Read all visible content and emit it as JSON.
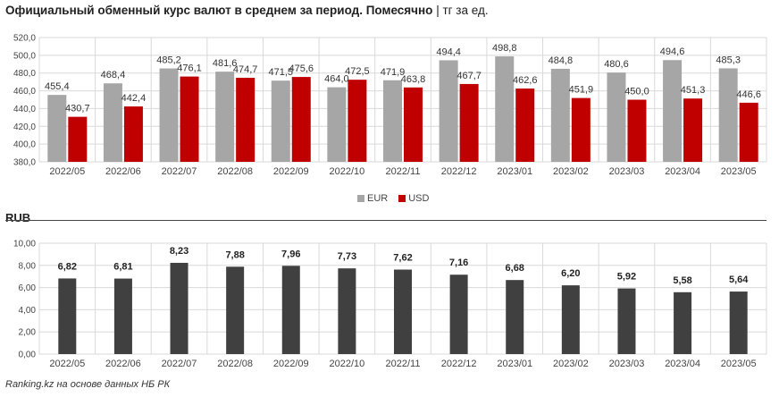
{
  "title": "Официальный обменный курс валют в среднем за период. Помесячно",
  "title_unit": "| тг за ед.",
  "rub_label": "RUB",
  "source": "Ranking.kz на основе данных НБ РК",
  "colors": {
    "eur": "#a6a6a6",
    "usd": "#c00000",
    "rub": "#404040",
    "grid": "#d9d9d9"
  },
  "chart_data": [
    {
      "type": "bar",
      "title": "Официальный обменный курс валют в среднем за период. Помесячно",
      "categories": [
        "2022/05",
        "2022/06",
        "2022/07",
        "2022/08",
        "2022/09",
        "2022/10",
        "2022/11",
        "2022/12",
        "2023/01",
        "2023/02",
        "2023/03",
        "2023/04",
        "2023/05"
      ],
      "series": [
        {
          "name": "EUR",
          "values": [
            455.4,
            468.4,
            485.2,
            481.6,
            471.5,
            464.0,
            471.9,
            494.4,
            498.8,
            484.8,
            480.6,
            494.6,
            485.3
          ]
        },
        {
          "name": "USD",
          "values": [
            430.7,
            442.4,
            476.1,
            474.7,
            475.6,
            472.5,
            463.8,
            467.7,
            462.6,
            451.9,
            450.0,
            451.3,
            446.6
          ]
        }
      ],
      "value_labels": {
        "EUR": [
          "455,4",
          "468,4",
          "485,2",
          "481,6",
          "471,5",
          "464,0",
          "471,9",
          "494,4",
          "498,8",
          "484,8",
          "480,6",
          "494,6",
          "485,3"
        ],
        "USD": [
          "430,7",
          "442,4",
          "476,1",
          "474,7",
          "475,6",
          "472,5",
          "463,8",
          "467,7",
          "462,6",
          "451,9",
          "450,0",
          "451,3",
          "446,6"
        ]
      },
      "ylim": [
        380,
        520
      ],
      "yticks": [
        380,
        400,
        420,
        440,
        460,
        480,
        500,
        520
      ],
      "ytick_labels": [
        "380,0",
        "400,0",
        "420,0",
        "440,0",
        "460,0",
        "480,0",
        "500,0",
        "520,0"
      ],
      "grid": true,
      "legend": "bottom-center"
    },
    {
      "type": "bar",
      "title": "RUB",
      "categories": [
        "2022/05",
        "2022/06",
        "2022/07",
        "2022/08",
        "2022/09",
        "2022/10",
        "2022/11",
        "2022/12",
        "2023/01",
        "2023/02",
        "2023/03",
        "2023/04",
        "2023/05"
      ],
      "values": [
        6.82,
        6.81,
        8.23,
        7.88,
        7.96,
        7.73,
        7.62,
        7.16,
        6.68,
        6.2,
        5.92,
        5.58,
        5.64
      ],
      "value_labels": [
        "6,82",
        "6,81",
        "8,23",
        "7,88",
        "7,96",
        "7,73",
        "7,62",
        "7,16",
        "6,68",
        "6,20",
        "5,92",
        "5,58",
        "5,64"
      ],
      "ylim": [
        0,
        10
      ],
      "yticks": [
        0,
        2,
        4,
        6,
        8,
        10
      ],
      "ytick_labels": [
        "0,00",
        "2,00",
        "4,00",
        "6,00",
        "8,00",
        "10,00"
      ],
      "grid": true
    }
  ]
}
